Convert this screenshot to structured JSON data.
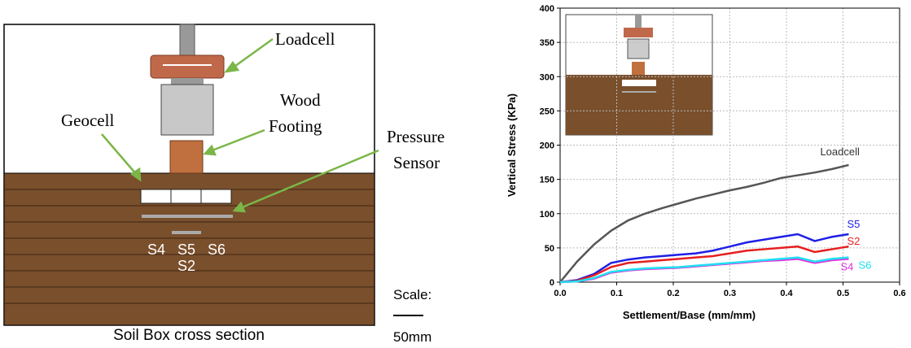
{
  "diagram": {
    "labels": {
      "loadcell": "Loadcell",
      "wood_footing": [
        "Wood",
        "Footing"
      ],
      "geocell": "Geocell",
      "pressure_sensor": [
        "Pressure",
        "Sensor"
      ],
      "sensors": [
        "S4",
        "S5",
        "S6",
        "S2"
      ],
      "scale": "Scale:",
      "scale_length": "50mm",
      "caption": "Soil Box cross section"
    }
  },
  "chart_data": {
    "type": "line",
    "x_label": "Settlement/Base (mm/mm)",
    "y_label": "Vertical Stress (KPa)",
    "x": [
      0,
      0.03,
      0.06,
      0.09,
      0.12,
      0.15,
      0.18,
      0.21,
      0.24,
      0.27,
      0.3,
      0.33,
      0.36,
      0.39,
      0.42,
      0.45,
      0.48,
      0.51
    ],
    "series": [
      {
        "name": "Loadcell",
        "color": "#555555",
        "values": [
          0,
          30,
          55,
          75,
          90,
          100,
          108,
          115,
          122,
          128,
          134,
          139,
          145,
          152,
          156,
          160,
          165,
          171
        ]
      },
      {
        "name": "S5",
        "color": "#1f1fe6",
        "values": [
          0,
          3,
          12,
          28,
          33,
          36,
          38,
          40,
          42,
          46,
          52,
          58,
          62,
          66,
          70,
          60,
          66,
          70
        ]
      },
      {
        "name": "S2",
        "color": "#e61f1f",
        "values": [
          0,
          2,
          10,
          22,
          28,
          30,
          32,
          34,
          36,
          38,
          42,
          46,
          48,
          50,
          52,
          44,
          48,
          52
        ]
      },
      {
        "name": "S4",
        "color": "#e030e0",
        "values": [
          0,
          1,
          5,
          14,
          17,
          19,
          20,
          21,
          23,
          25,
          27,
          29,
          31,
          32,
          34,
          28,
          32,
          34
        ]
      },
      {
        "name": "S6",
        "color": "#20e0f0",
        "values": [
          0,
          1,
          6,
          15,
          18,
          20,
          21,
          22,
          24,
          26,
          28,
          30,
          32,
          34,
          36,
          30,
          34,
          36
        ]
      }
    ],
    "xlim": [
      0,
      0.6
    ],
    "xticks": [
      {
        "value": 0,
        "label": "0.0"
      },
      0.1,
      0.2,
      0.3,
      0.4,
      0.5,
      0.6
    ],
    "ylim": [
      0,
      400
    ],
    "yticks": [
      0,
      50,
      100,
      150,
      200,
      250,
      300,
      350,
      400
    ],
    "grid": true
  }
}
